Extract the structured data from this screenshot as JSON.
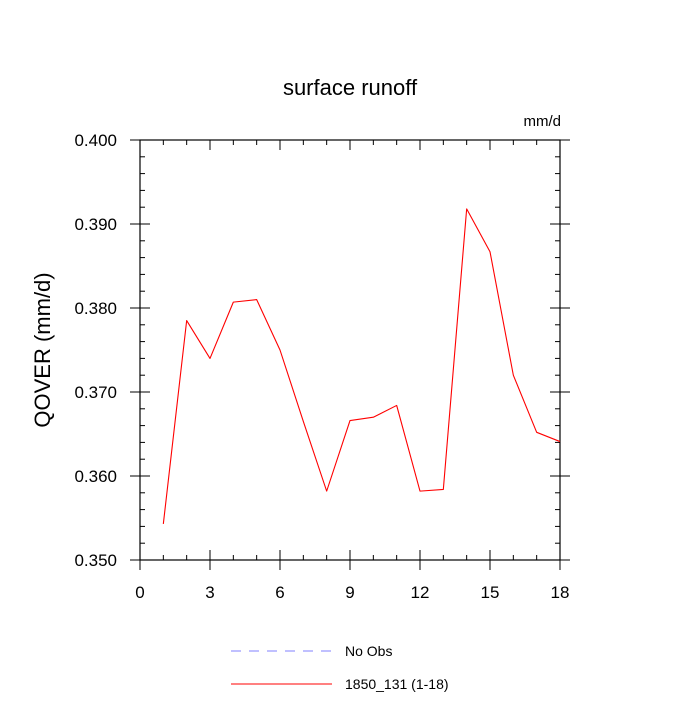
{
  "chart_data": {
    "type": "line",
    "title": "surface runoff",
    "units_label": "mm/d",
    "xlabel": "",
    "ylabel": "QOVER  (mm/d)",
    "xlim": [
      0,
      18
    ],
    "ylim": [
      0.35,
      0.4
    ],
    "x_ticks": [
      0,
      3,
      6,
      9,
      12,
      15,
      18
    ],
    "x_tick_labels": [
      "0",
      "3",
      "6",
      "9",
      "12",
      "15",
      "18"
    ],
    "y_ticks": [
      0.35,
      0.36,
      0.37,
      0.38,
      0.39,
      0.4
    ],
    "y_tick_labels": [
      "0.350",
      "0.360",
      "0.370",
      "0.380",
      "0.390",
      "0.400"
    ],
    "grid": false,
    "legend_position": "bottom",
    "series": [
      {
        "name": "1850_131 (1-18)",
        "color": "#ff0000",
        "style": "solid",
        "x": [
          1,
          2,
          3,
          4,
          5,
          6,
          7,
          8,
          9,
          10,
          11,
          12,
          13,
          14,
          15,
          16,
          17,
          18
        ],
        "values": [
          0.3543,
          0.3785,
          0.374,
          0.3807,
          0.381,
          0.375,
          0.3665,
          0.3582,
          0.3666,
          0.367,
          0.3684,
          0.3582,
          0.3584,
          0.3918,
          0.3867,
          0.372,
          0.3652,
          0.3641
        ]
      }
    ],
    "legend": [
      {
        "label": "No Obs",
        "color": "#8080ff",
        "style": "dashed"
      },
      {
        "label": "1850_131 (1-18)",
        "color": "#ff0000",
        "style": "solid"
      }
    ]
  }
}
